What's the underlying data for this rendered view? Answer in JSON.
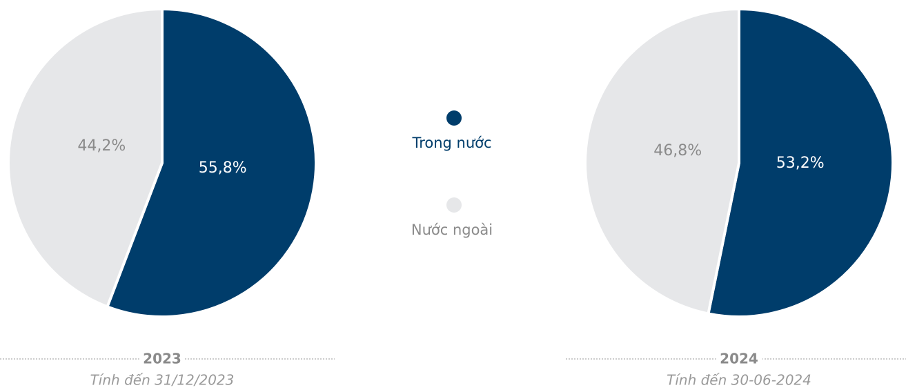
{
  "chart_data": [
    {
      "type": "pie",
      "title": "2023",
      "subtitle": "Tính đến 31/12/2023",
      "categories": [
        "Trong nước",
        "Nước ngoài"
      ],
      "values": [
        55.8,
        44.2
      ],
      "value_labels": [
        "55,8%",
        "44,2%"
      ],
      "colors": [
        "#003d6b",
        "#e6e7e9"
      ]
    },
    {
      "type": "pie",
      "title": "2024",
      "subtitle": "Tính đến 30-06-2024",
      "categories": [
        "Trong nước",
        "Nước ngoài"
      ],
      "values": [
        53.2,
        46.8
      ],
      "value_labels": [
        "53,2%",
        "46,8%"
      ],
      "colors": [
        "#003d6b",
        "#e6e7e9"
      ]
    }
  ]
}
